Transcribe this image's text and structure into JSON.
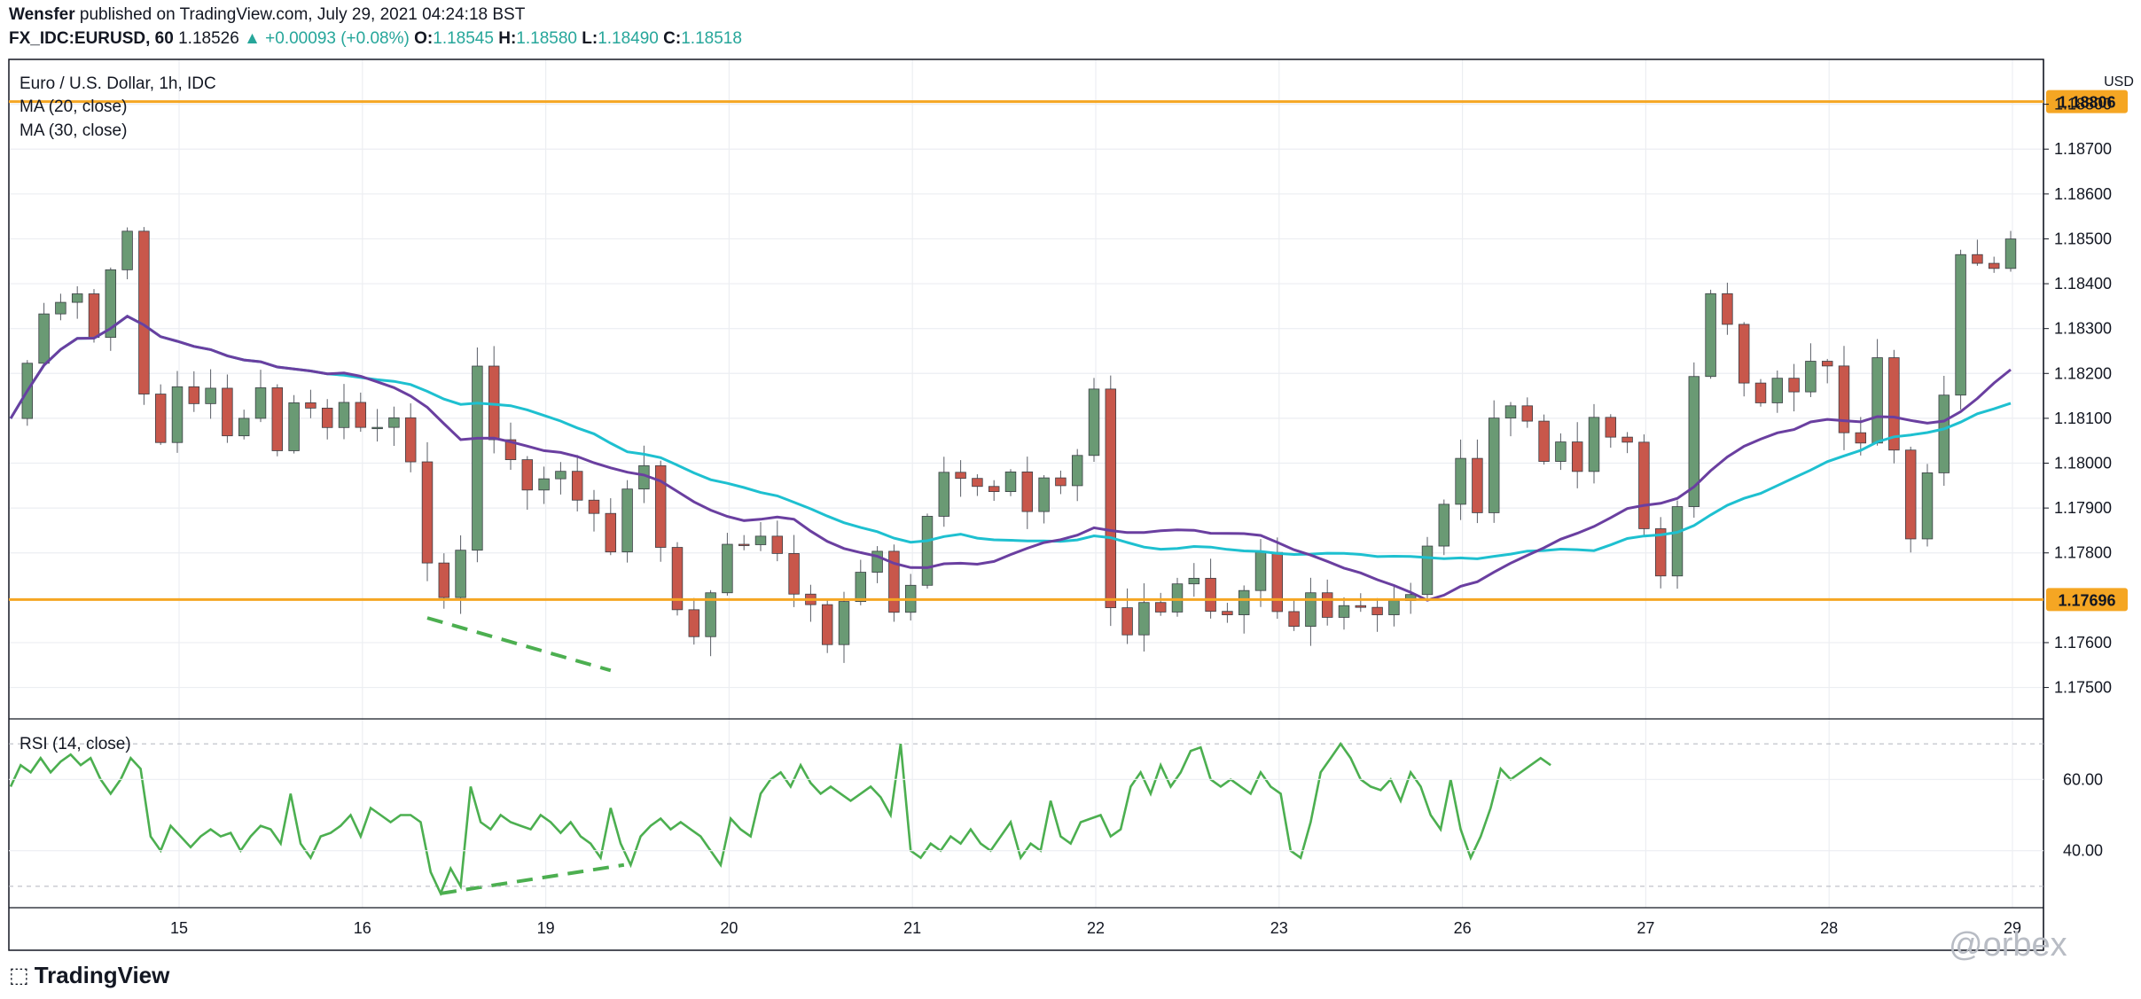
{
  "header": {
    "author": "Wensfer",
    "published_text": "published on TradingView.com, July 29, 2021 04:24:18 BST",
    "symbol": "FX_IDC:EURUSD, 60",
    "last": "1.18526",
    "change": "+0.00093 (+0.08%)",
    "open_label": "O:",
    "open": "1.18545",
    "high_label": "H:",
    "high": "1.18580",
    "low_label": "L:",
    "low": "1.18490",
    "close_label": "C:",
    "close": "1.18518"
  },
  "legend": {
    "title": "Euro / U.S. Dollar, 1h, IDC",
    "ma20": "MA (20, close)",
    "ma30": "MA (30, close)",
    "rsi": "RSI (14, close)"
  },
  "footer": {
    "brand": "TradingView",
    "watermark": "@orbex"
  },
  "colors": {
    "up": "#6a9a74",
    "down": "#c8574b",
    "ma20": "#6a3fa0",
    "ma30": "#1ec0d0",
    "level": "#f5a623",
    "rsi": "#4caf50",
    "divergence": "#4caf50"
  },
  "chart_data": [
    {
      "type": "candlestick",
      "title": "Euro / U.S. Dollar, 1h, IDC",
      "currency": "USD",
      "x_ticks": [
        "15",
        "16",
        "19",
        "20",
        "21",
        "22",
        "23",
        "26",
        "27",
        "28",
        "29"
      ],
      "y_ticks": [
        "1.18800",
        "1.18700",
        "1.18600",
        "1.18500",
        "1.18400",
        "1.18300",
        "1.18200",
        "1.18100",
        "1.18000",
        "1.17900",
        "1.17800",
        "1.17600",
        "1.17500"
      ],
      "ylim": [
        1.1743,
        1.189
      ],
      "horizontal_levels": [
        {
          "value": 1.18806,
          "label": "1.18806"
        },
        {
          "value": 1.17696,
          "label": "1.17696"
        }
      ],
      "close_path": [
        [
          0.0,
          1.181
        ],
        [
          1.0,
          1.1822
        ],
        [
          2.0,
          1.1835
        ],
        [
          3.0,
          1.1837
        ],
        [
          4.0,
          1.1838
        ],
        [
          5.0,
          1.1828
        ],
        [
          6.0,
          1.1845
        ],
        [
          7.0,
          1.185
        ],
        [
          8.0,
          1.1815
        ],
        [
          9.0,
          1.1805
        ],
        [
          10.0,
          1.1818
        ],
        [
          11.0,
          1.1812
        ],
        [
          12.0,
          1.1816
        ],
        [
          13.0,
          1.1808
        ],
        [
          14.0,
          1.181
        ],
        [
          15.0,
          1.1818
        ],
        [
          16.0,
          1.1802
        ],
        [
          17.0,
          1.1815
        ],
        [
          18.0,
          1.1812
        ],
        [
          19.0,
          1.1808
        ],
        [
          20.0,
          1.1815
        ],
        [
          21.0,
          1.181
        ],
        [
          22.0,
          1.1806
        ],
        [
          23.0,
          1.1808
        ],
        [
          24.0,
          1.1802
        ],
        [
          25.0,
          1.1778
        ],
        [
          26.0,
          1.1768
        ],
        [
          27.0,
          1.1782
        ],
        [
          28.0,
          1.1822
        ],
        [
          29.0,
          1.1805
        ],
        [
          30.0,
          1.18
        ],
        [
          31.0,
          1.1795
        ],
        [
          32.0,
          1.1798
        ],
        [
          33.0,
          1.1796
        ],
        [
          34.0,
          1.1792
        ],
        [
          35.0,
          1.179
        ],
        [
          36.0,
          1.178
        ],
        [
          37.0,
          1.1795
        ],
        [
          38.0,
          1.1801
        ],
        [
          39.0,
          1.178
        ],
        [
          40.0,
          1.1768
        ],
        [
          41.0,
          1.1762
        ],
        [
          42.0,
          1.1773
        ],
        [
          43.0,
          1.178
        ],
        [
          44.0,
          1.1783
        ],
        [
          45.0,
          1.1782
        ],
        [
          46.0,
          1.178
        ],
        [
          47.0,
          1.1772
        ],
        [
          48.0,
          1.1768
        ],
        [
          49.0,
          1.176
        ],
        [
          50.0,
          1.1768
        ],
        [
          51.0,
          1.1775
        ],
        [
          52.0,
          1.1782
        ],
        [
          53.0,
          1.1768
        ],
        [
          54.0,
          1.1773
        ],
        [
          55.0,
          1.179
        ],
        [
          56.0,
          1.18
        ],
        [
          57.0,
          1.1797
        ],
        [
          58.0,
          1.1794
        ],
        [
          59.0,
          1.1793
        ],
        [
          60.0,
          1.1796
        ],
        [
          61.0,
          1.179
        ],
        [
          62.0,
          1.1797
        ],
        [
          63.0,
          1.1795
        ],
        [
          64.0,
          1.1802
        ],
        [
          65.0,
          1.1815
        ],
        [
          66.0,
          1.1768
        ],
        [
          67.0,
          1.1762
        ],
        [
          68.0,
          1.177
        ],
        [
          69.0,
          1.1768
        ],
        [
          70.0,
          1.1772
        ],
        [
          71.0,
          1.1776
        ],
        [
          72.0,
          1.1768
        ],
        [
          73.0,
          1.1765
        ],
        [
          74.0,
          1.177
        ],
        [
          75.0,
          1.1778
        ],
        [
          76.0,
          1.1765
        ],
        [
          77.0,
          1.1762
        ],
        [
          78.0,
          1.177
        ],
        [
          79.0,
          1.1765
        ],
        [
          80.0,
          1.1768
        ],
        [
          81.0,
          1.177
        ],
        [
          82.0,
          1.1767
        ],
        [
          83.0,
          1.177
        ],
        [
          84.0,
          1.1772
        ],
        [
          85.0,
          1.1782
        ],
        [
          86.0,
          1.179
        ],
        [
          87.0,
          1.18
        ],
        [
          88.0,
          1.179
        ],
        [
          89.0,
          1.1808
        ],
        [
          90.0,
          1.1815
        ],
        [
          91.0,
          1.181
        ],
        [
          92.0,
          1.18
        ],
        [
          93.0,
          1.1805
        ],
        [
          94.0,
          1.18
        ],
        [
          95.0,
          1.1808
        ],
        [
          96.0,
          1.1806
        ],
        [
          97.0,
          1.1803
        ],
        [
          98.0,
          1.1785
        ],
        [
          99.0,
          1.1775
        ],
        [
          100.0,
          1.1792
        ],
        [
          101.0,
          1.1818
        ],
        [
          102.0,
          1.1836
        ],
        [
          103.0,
          1.1832
        ],
        [
          104.0,
          1.182
        ],
        [
          105.0,
          1.1815
        ],
        [
          106.0,
          1.1818
        ],
        [
          107.0,
          1.1815
        ],
        [
          108.0,
          1.1822
        ],
        [
          109.0,
          1.182
        ],
        [
          110.0,
          1.1808
        ],
        [
          111.0,
          1.1803
        ],
        [
          112.0,
          1.1825
        ],
        [
          113.0,
          1.1805
        ],
        [
          114.0,
          1.1785
        ],
        [
          115.0,
          1.18
        ],
        [
          116.0,
          1.1815
        ],
        [
          117.0,
          1.1845
        ],
        [
          118.0,
          1.1843
        ],
        [
          119.0,
          1.1845
        ],
        [
          120.0,
          1.185
        ]
      ],
      "path_note": "x is the bar position along the time axis, from the first bar (0) to the last bar (120)",
      "indicators": [
        "MA (20, close)",
        "MA (30, close)"
      ]
    },
    {
      "type": "line",
      "title": "RSI (14, close)",
      "y_ticks": [
        "60.00",
        "40.00"
      ],
      "ylim": [
        24,
        77
      ],
      "bands": [
        70,
        30
      ],
      "values": [
        [
          0.0,
          58
        ],
        [
          0.6,
          64
        ],
        [
          1.2,
          62
        ],
        [
          1.8,
          66
        ],
        [
          2.4,
          62
        ],
        [
          3.0,
          65
        ],
        [
          3.6,
          67
        ],
        [
          4.2,
          64
        ],
        [
          4.8,
          66
        ],
        [
          5.4,
          60
        ],
        [
          6.0,
          56
        ],
        [
          6.6,
          60
        ],
        [
          7.2,
          66
        ],
        [
          7.8,
          63
        ],
        [
          8.4,
          44
        ],
        [
          9.0,
          40
        ],
        [
          9.6,
          47
        ],
        [
          10.2,
          44
        ],
        [
          10.8,
          41
        ],
        [
          11.4,
          44
        ],
        [
          12.0,
          46
        ],
        [
          12.6,
          44
        ],
        [
          13.2,
          45
        ],
        [
          13.8,
          40
        ],
        [
          14.4,
          44
        ],
        [
          15.0,
          47
        ],
        [
          15.6,
          46
        ],
        [
          16.2,
          42
        ],
        [
          16.8,
          56
        ],
        [
          17.4,
          42
        ],
        [
          18.0,
          38
        ],
        [
          18.6,
          44
        ],
        [
          19.2,
          45
        ],
        [
          19.8,
          47
        ],
        [
          20.4,
          50
        ],
        [
          21.0,
          44
        ],
        [
          21.6,
          52
        ],
        [
          22.2,
          50
        ],
        [
          22.8,
          48
        ],
        [
          23.4,
          50
        ],
        [
          24.0,
          50
        ],
        [
          24.6,
          48
        ],
        [
          25.2,
          34
        ],
        [
          25.8,
          28
        ],
        [
          26.4,
          35
        ],
        [
          27.0,
          30
        ],
        [
          27.6,
          58
        ],
        [
          28.2,
          48
        ],
        [
          28.8,
          46
        ],
        [
          29.4,
          50
        ],
        [
          30.0,
          48
        ],
        [
          30.6,
          47
        ],
        [
          31.2,
          46
        ],
        [
          31.8,
          50
        ],
        [
          32.4,
          48
        ],
        [
          33.0,
          45
        ],
        [
          33.6,
          48
        ],
        [
          34.2,
          44
        ],
        [
          34.8,
          42
        ],
        [
          35.4,
          38
        ],
        [
          36.0,
          52
        ],
        [
          36.6,
          42
        ],
        [
          37.2,
          36
        ],
        [
          37.8,
          44
        ],
        [
          38.4,
          47
        ],
        [
          39.0,
          49
        ],
        [
          39.6,
          46
        ],
        [
          40.2,
          48
        ],
        [
          40.8,
          46
        ],
        [
          41.4,
          44
        ],
        [
          42.0,
          40
        ],
        [
          42.6,
          36
        ],
        [
          43.2,
          49
        ],
        [
          43.8,
          46
        ],
        [
          44.4,
          44
        ],
        [
          45.0,
          56
        ],
        [
          45.6,
          60
        ],
        [
          46.2,
          62
        ],
        [
          46.8,
          58
        ],
        [
          47.4,
          64
        ],
        [
          48.0,
          59
        ],
        [
          48.6,
          56
        ],
        [
          49.2,
          58
        ],
        [
          49.8,
          56
        ],
        [
          50.4,
          54
        ],
        [
          51.0,
          56
        ],
        [
          51.6,
          58
        ],
        [
          52.2,
          55
        ],
        [
          52.8,
          50
        ],
        [
          53.4,
          70
        ],
        [
          54.0,
          40
        ],
        [
          54.6,
          38
        ],
        [
          55.2,
          42
        ],
        [
          55.8,
          40
        ],
        [
          56.4,
          44
        ],
        [
          57.0,
          42
        ],
        [
          57.6,
          46
        ],
        [
          58.2,
          42
        ],
        [
          58.8,
          40
        ],
        [
          59.4,
          44
        ],
        [
          60.0,
          48
        ],
        [
          60.6,
          38
        ],
        [
          61.2,
          42
        ],
        [
          61.8,
          40
        ],
        [
          62.4,
          54
        ],
        [
          63.0,
          44
        ],
        [
          63.6,
          42
        ],
        [
          64.2,
          48
        ],
        [
          64.8,
          49
        ],
        [
          65.4,
          50
        ],
        [
          66.0,
          44
        ],
        [
          66.6,
          46
        ],
        [
          67.2,
          58
        ],
        [
          67.8,
          62
        ],
        [
          68.4,
          56
        ],
        [
          69.0,
          64
        ],
        [
          69.6,
          58
        ],
        [
          70.2,
          62
        ],
        [
          70.8,
          68
        ],
        [
          71.4,
          69
        ],
        [
          72.0,
          60
        ],
        [
          72.6,
          58
        ],
        [
          73.2,
          60
        ],
        [
          73.8,
          58
        ],
        [
          74.4,
          56
        ],
        [
          75.0,
          62
        ],
        [
          75.6,
          58
        ],
        [
          76.2,
          56
        ],
        [
          76.8,
          40
        ],
        [
          77.4,
          38
        ],
        [
          78.0,
          48
        ],
        [
          78.6,
          62
        ],
        [
          79.2,
          66
        ],
        [
          79.8,
          70
        ],
        [
          80.4,
          66
        ],
        [
          81.0,
          60
        ],
        [
          81.6,
          58
        ],
        [
          82.2,
          57
        ],
        [
          82.8,
          60
        ],
        [
          83.4,
          54
        ],
        [
          84.0,
          62
        ],
        [
          84.6,
          58
        ],
        [
          85.2,
          50
        ],
        [
          85.8,
          46
        ],
        [
          86.4,
          60
        ],
        [
          87.0,
          46
        ],
        [
          87.6,
          38
        ],
        [
          88.2,
          44
        ],
        [
          88.8,
          52
        ],
        [
          89.4,
          63
        ],
        [
          90.0,
          60
        ],
        [
          90.6,
          62
        ],
        [
          91.2,
          64
        ],
        [
          91.8,
          66
        ],
        [
          92.4,
          64
        ]
      ],
      "divergence_lines": [
        {
          "pane": "price",
          "from": [
            25.0,
            1.17655
          ],
          "to": [
            36.0,
            1.17538
          ]
        },
        {
          "pane": "rsi",
          "from": [
            25.8,
            28
          ],
          "to": [
            36.8,
            36
          ]
        }
      ]
    }
  ]
}
